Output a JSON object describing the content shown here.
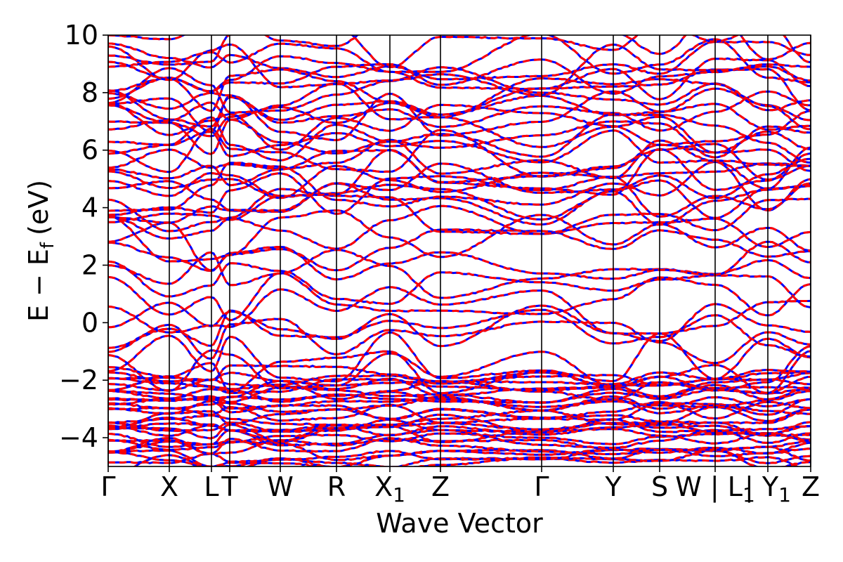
{
  "chart_data": {
    "type": "line",
    "xlabel": "Wave Vector",
    "ylabel_parts": {
      "main1": "E",
      "sub1": "",
      "dash": "−",
      "main2": "E",
      "sub2": "f",
      "unit": "(eV)"
    },
    "ylabel": "E − E_f (eV)",
    "ylim": [
      -5,
      10
    ],
    "yticks": [
      10,
      8,
      6,
      4,
      2,
      0,
      -2,
      -4
    ],
    "ytick_labels": [
      "10",
      "8",
      "6",
      "4",
      "2",
      "0",
      "−2",
      "−4"
    ],
    "xlim": [
      0,
      1
    ],
    "kpoints": [
      {
        "x": 0.0,
        "main": "Γ",
        "sub": ""
      },
      {
        "x": 0.087,
        "main": "X",
        "sub": ""
      },
      {
        "x": 0.147,
        "main": "L",
        "sub": ""
      },
      {
        "x": 0.173,
        "main": "T",
        "sub": ""
      },
      {
        "x": 0.245,
        "main": "W",
        "sub": ""
      },
      {
        "x": 0.325,
        "main": "R",
        "sub": ""
      },
      {
        "x": 0.401,
        "main": "X",
        "sub": "1"
      },
      {
        "x": 0.473,
        "main": "Z",
        "sub": ""
      },
      {
        "x": 0.617,
        "main": "Γ",
        "sub": ""
      },
      {
        "x": 0.719,
        "main": "Y",
        "sub": ""
      },
      {
        "x": 0.785,
        "main": "S",
        "sub": ""
      },
      {
        "x": 0.864,
        "main": "W | L",
        "sub": "1"
      },
      {
        "x": 0.939,
        "main": "| Y",
        "sub": "1"
      },
      {
        "x": 1.0,
        "main": "Z",
        "sub": ""
      }
    ],
    "series": [
      {
        "color": "#0000ff",
        "style": "solid"
      },
      {
        "color": "#ff0000",
        "style": "dashed"
      }
    ],
    "grid": false,
    "band_seed": 7
  }
}
